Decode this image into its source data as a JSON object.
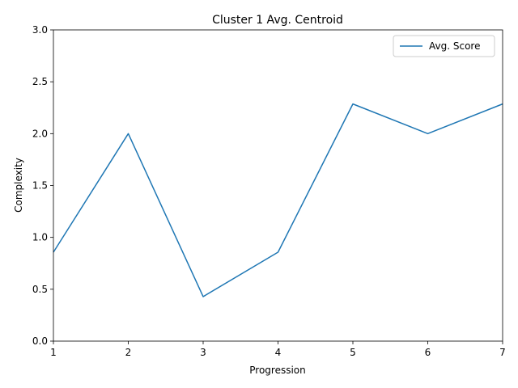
{
  "chart_data": {
    "type": "line",
    "title": "Cluster 1 Avg. Centroid",
    "xlabel": "Progression",
    "ylabel": "Complexity",
    "x": [
      1,
      2,
      3,
      4,
      5,
      6,
      7
    ],
    "xlim": [
      1,
      7
    ],
    "ylim": [
      0,
      3
    ],
    "xticks": [
      "1",
      "2",
      "3",
      "4",
      "5",
      "6",
      "7"
    ],
    "yticks": [
      "0.0",
      "0.5",
      "1.0",
      "1.5",
      "2.0",
      "2.5",
      "3.0"
    ],
    "grid": false,
    "legend_position": "top-right",
    "series": [
      {
        "name": "Avg. Score",
        "color": "#1f77b4",
        "values": [
          0.857,
          2.0,
          0.429,
          0.857,
          2.286,
          2.0,
          2.286
        ]
      }
    ]
  }
}
